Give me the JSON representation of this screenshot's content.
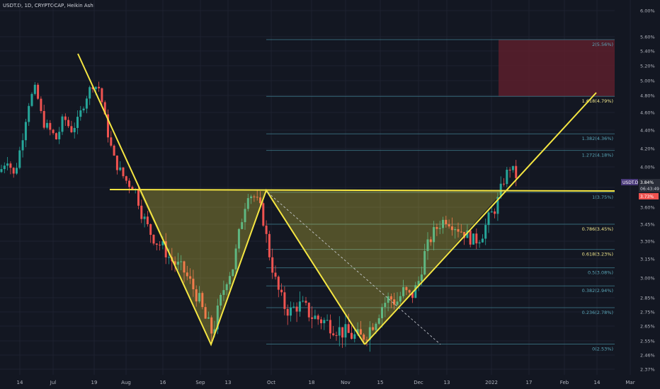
{
  "header": {
    "title": "USDT.D, 1D, CRYPTOCAP, Heikin Ashi"
  },
  "colors": {
    "background": "#131722",
    "grid": "#1e2230",
    "bull": "#26a69a",
    "bear": "#ef5350",
    "pattern": "#f5e642",
    "fib": "#3d7a8a",
    "target_box": "#5c1f2c"
  },
  "price_box": {
    "symbol": "USDT.D",
    "price": "3.84%",
    "timer": "06:43:49",
    "extra": "3.73%"
  },
  "chart_data": {
    "type": "candlestick",
    "title": "USDT.D, 1D, CRYPTOCAP, Heikin Ashi",
    "x_ticks": [
      "14",
      "Jul",
      "19",
      "Aug",
      "16",
      "Sep",
      "13",
      "Oct",
      "18",
      "Nov",
      "15",
      "Dec",
      "13",
      "2022",
      "17",
      "Feb",
      "14",
      "Mar"
    ],
    "y_ticks": [
      "6.00%",
      "5.60%",
      "5.40%",
      "5.20%",
      "5.00%",
      "4.80%",
      "4.60%",
      "4.40%",
      "4.20%",
      "4.00%",
      "3.80%",
      "3.60%",
      "3.45%",
      "3.30%",
      "3.15%",
      "3.00%",
      "2.85%",
      "2.75%",
      "2.65%",
      "2.55%",
      "2.46%",
      "2.37%"
    ],
    "fib_levels": [
      {
        "label": "2(5.56%)",
        "value": 5.56,
        "highlight": false
      },
      {
        "label": "1.618(4.79%)",
        "value": 4.79,
        "highlight": true
      },
      {
        "label": "1.382(4.36%)",
        "value": 4.36,
        "highlight": false
      },
      {
        "label": "1.272(4.18%)",
        "value": 4.18,
        "highlight": false
      },
      {
        "label": "1(3.75%)",
        "value": 3.75,
        "highlight": false
      },
      {
        "label": "0.786(3.45%)",
        "value": 3.45,
        "highlight": true
      },
      {
        "label": "0.618(3.23%)",
        "value": 3.23,
        "highlight": true
      },
      {
        "label": "0.5(3.08%)",
        "value": 3.08,
        "highlight": false
      },
      {
        "label": "0.382(2.94%)",
        "value": 2.94,
        "highlight": false
      },
      {
        "label": "0.236(2.78%)",
        "value": 2.78,
        "highlight": false
      },
      {
        "label": "0(2.53%)",
        "value": 2.53,
        "highlight": false
      }
    ],
    "neckline": 3.75,
    "target_zone": [
      4.79,
      5.56
    ]
  }
}
